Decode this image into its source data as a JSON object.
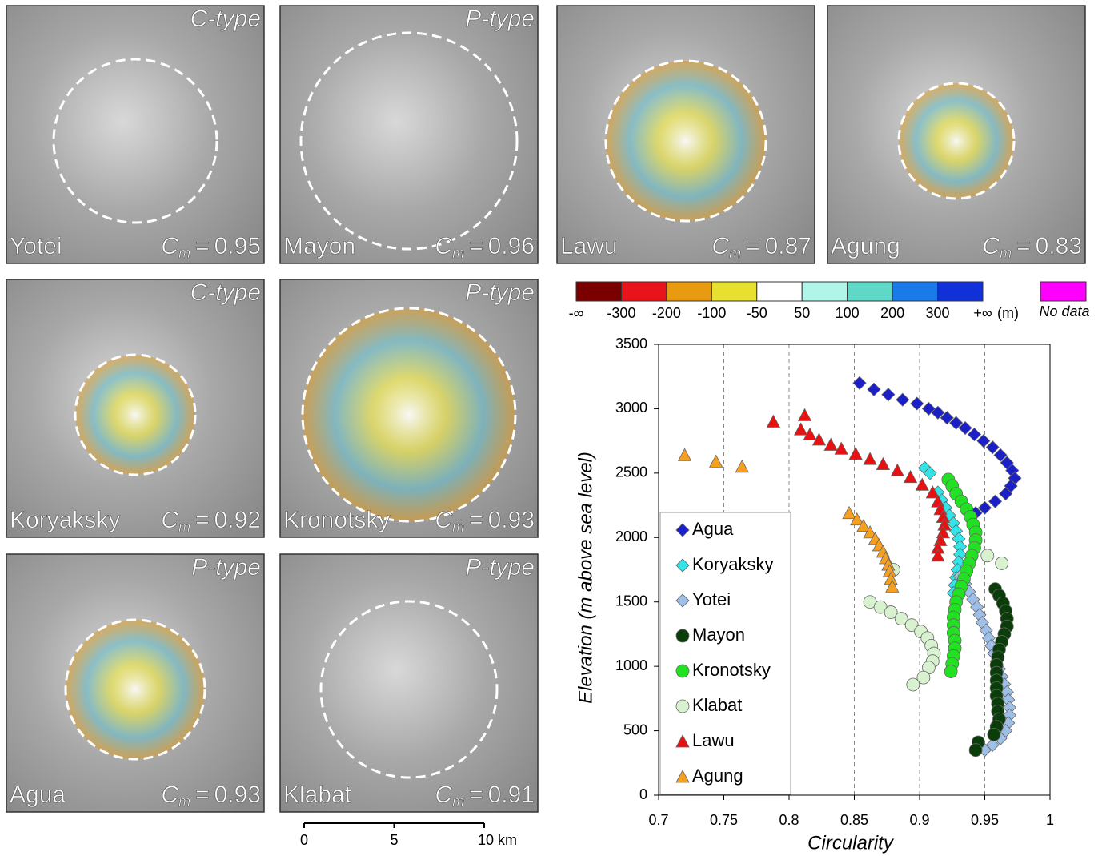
{
  "panels": [
    {
      "name": "Yotei",
      "type_label": "C-type",
      "circularity": 0.95
    },
    {
      "name": "Mayon",
      "type_label": "P-type",
      "circularity": 0.96
    },
    {
      "name": "Lawu",
      "circularity": 0.87
    },
    {
      "name": "Agung",
      "circularity": 0.83
    },
    {
      "name": "Koryaksky",
      "type_label": "C-type",
      "circularity": 0.92
    },
    {
      "name": "Kronotsky",
      "type_label": "P-type",
      "circularity": 0.93
    },
    {
      "name": "Agua",
      "type_label": "P-type",
      "circularity": 0.93
    },
    {
      "name": "Klabat",
      "type_label": "P-type",
      "circularity": 0.91
    }
  ],
  "circularity_symbol": "C",
  "circularity_subscript": "m",
  "equals_sign": "=",
  "colorbar": {
    "colors": [
      "#7a0000",
      "#e8141c",
      "#e89a10",
      "#e8e030",
      "#ffffff",
      "#b0f5e8",
      "#60d8c8",
      "#1a7ae8",
      "#1030d8"
    ],
    "labels": [
      "-∞",
      "-300",
      "-200",
      "-100",
      "-50",
      "50",
      "100",
      "200",
      "300",
      "+∞"
    ],
    "unit": "(m)",
    "no_data_label": "No data",
    "no_data_color": "#ff00ff"
  },
  "scale_bar": {
    "labels": [
      "0",
      "5",
      "10 km"
    ]
  },
  "chart_data": {
    "type": "scatter",
    "xlabel": "Circularity",
    "ylabel": "Elevation (m above sea level)",
    "xlim": [
      0.7,
      1
    ],
    "ylim": [
      0,
      3500
    ],
    "xticks": [
      0.7,
      0.75,
      0.8,
      0.85,
      0.9,
      0.95,
      1
    ],
    "yticks": [
      0,
      500,
      1000,
      1500,
      2000,
      2500,
      3000,
      3500
    ],
    "grid": "x",
    "legend": "lower left",
    "series": [
      {
        "name": "Agua",
        "color": "#1a1fc8",
        "marker": "diamond",
        "x": [
          0.854,
          0.865,
          0.876,
          0.887,
          0.898,
          0.907,
          0.914,
          0.921,
          0.928,
          0.935,
          0.942,
          0.949,
          0.956,
          0.962,
          0.967,
          0.971,
          0.973,
          0.97,
          0.966,
          0.958,
          0.95,
          0.943
        ],
        "values": [
          3200,
          3150,
          3110,
          3070,
          3040,
          3000,
          2970,
          2930,
          2890,
          2850,
          2800,
          2750,
          2700,
          2640,
          2580,
          2520,
          2460,
          2400,
          2340,
          2280,
          2230,
          2190
        ]
      },
      {
        "name": "Koryaksky",
        "color": "#33e5e8",
        "marker": "diamond",
        "x": [
          0.904,
          0.908,
          0.914,
          0.917,
          0.92,
          0.923,
          0.926,
          0.928,
          0.93,
          0.931,
          0.931,
          0.93,
          0.929,
          0.928,
          0.927,
          0.926
        ],
        "values": [
          2540,
          2500,
          2350,
          2290,
          2230,
          2170,
          2110,
          2050,
          1990,
          1930,
          1870,
          1810,
          1750,
          1690,
          1630,
          1570
        ]
      },
      {
        "name": "Yotei",
        "color": "#9dbfe8",
        "marker": "diamond",
        "x": [
          0.931,
          0.935,
          0.938,
          0.941,
          0.944,
          0.946,
          0.948,
          0.951,
          0.953,
          0.955,
          0.957,
          0.959,
          0.961,
          0.963,
          0.965,
          0.967,
          0.968,
          0.969,
          0.969,
          0.968,
          0.966,
          0.962,
          0.956,
          0.95
        ],
        "values": [
          1700,
          1640,
          1580,
          1520,
          1460,
          1400,
          1340,
          1280,
          1220,
          1160,
          1100,
          1040,
          980,
          920,
          860,
          800,
          740,
          680,
          620,
          560,
          500,
          440,
          390,
          350
        ]
      },
      {
        "name": "Mayon",
        "color": "#0a3d0a",
        "marker": "circle",
        "x": [
          0.958,
          0.961,
          0.964,
          0.966,
          0.967,
          0.967,
          0.965,
          0.963,
          0.961,
          0.96,
          0.959,
          0.959,
          0.959,
          0.959,
          0.959,
          0.96,
          0.96,
          0.961,
          0.959,
          0.957,
          0.945,
          0.943
        ],
        "values": [
          1600,
          1550,
          1490,
          1430,
          1370,
          1310,
          1250,
          1190,
          1130,
          1070,
          1010,
          950,
          890,
          830,
          770,
          710,
          650,
          590,
          530,
          470,
          410,
          350
        ]
      },
      {
        "name": "Kronotsky",
        "color": "#22e022",
        "marker": "circle",
        "x": [
          0.922,
          0.925,
          0.928,
          0.932,
          0.936,
          0.939,
          0.941,
          0.943,
          0.943,
          0.942,
          0.94,
          0.938,
          0.936,
          0.934,
          0.932,
          0.93,
          0.928,
          0.927,
          0.926,
          0.926,
          0.926,
          0.927,
          0.927,
          0.926,
          0.925,
          0.924
        ],
        "values": [
          2450,
          2400,
          2340,
          2280,
          2220,
          2160,
          2100,
          2040,
          1980,
          1920,
          1860,
          1800,
          1740,
          1680,
          1620,
          1560,
          1500,
          1440,
          1380,
          1320,
          1260,
          1200,
          1140,
          1080,
          1020,
          960
        ]
      },
      {
        "name": "Klabat",
        "color": "#d8f2d0",
        "marker": "circle",
        "x": [
          0.952,
          0.963,
          0.88,
          0.862,
          0.87,
          0.878,
          0.886,
          0.894,
          0.901,
          0.906,
          0.909,
          0.911,
          0.91,
          0.907,
          0.903,
          0.895
        ],
        "values": [
          1860,
          1800,
          1750,
          1500,
          1460,
          1420,
          1370,
          1320,
          1270,
          1220,
          1160,
          1100,
          1040,
          990,
          913,
          858
        ]
      },
      {
        "name": "Lawu",
        "color": "#e81010",
        "marker": "triangle",
        "x": [
          0.788,
          0.812,
          0.809,
          0.816,
          0.823,
          0.832,
          0.84,
          0.851,
          0.862,
          0.872,
          0.883,
          0.893,
          0.902,
          0.91,
          0.914,
          0.916,
          0.918,
          0.919,
          0.918,
          0.916,
          0.914,
          0.914
        ],
        "values": [
          2900,
          2950,
          2840,
          2800,
          2760,
          2720,
          2690,
          2650,
          2610,
          2570,
          2520,
          2470,
          2410,
          2350,
          2280,
          2220,
          2160,
          2100,
          2040,
          1980,
          1920,
          1860
        ]
      },
      {
        "name": "Agung",
        "color": "#f5a020",
        "marker": "triangle",
        "x": [
          0.72,
          0.744,
          0.764,
          0.846,
          0.852,
          0.857,
          0.862,
          0.866,
          0.869,
          0.872,
          0.874,
          0.876,
          0.877,
          0.878,
          0.879
        ],
        "values": [
          2640,
          2590,
          2550,
          2190,
          2140,
          2090,
          2040,
          1990,
          1940,
          1890,
          1840,
          1790,
          1740,
          1680,
          1620
        ]
      }
    ]
  }
}
